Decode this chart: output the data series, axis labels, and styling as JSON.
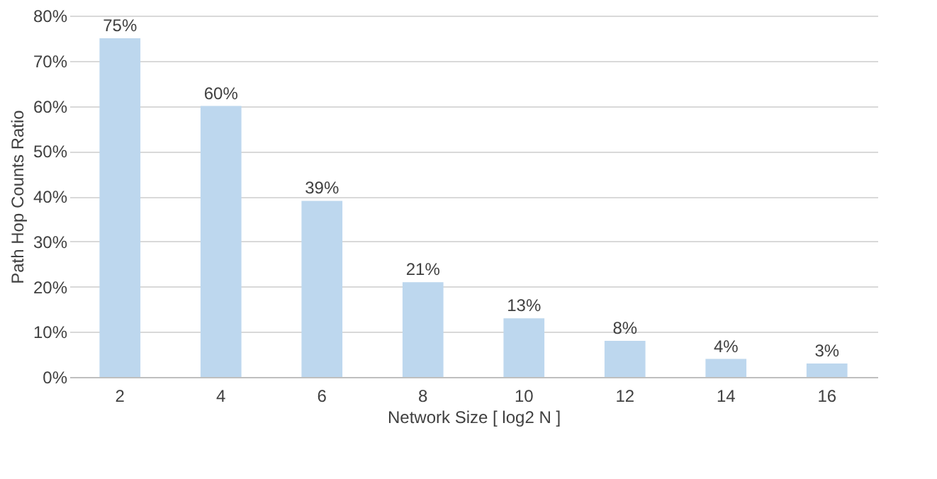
{
  "chart_data": {
    "type": "bar",
    "xlabel": "Network Size [ log2 N ]",
    "ylabel": "Path Hop Counts Ratio",
    "categories": [
      "2",
      "4",
      "6",
      "8",
      "10",
      "12",
      "14",
      "16"
    ],
    "values": [
      75,
      60,
      39,
      21,
      13,
      8,
      4,
      3
    ],
    "value_labels": [
      "75%",
      "60%",
      "39%",
      "21%",
      "13%",
      "8%",
      "4%",
      "3%"
    ],
    "color": "#bdd7ee",
    "ylim": [
      0,
      80
    ],
    "yticks": [
      {
        "value": 0,
        "label": "0%"
      },
      {
        "value": 10,
        "label": "10%"
      },
      {
        "value": 20,
        "label": "20%"
      },
      {
        "value": 30,
        "label": "30%"
      },
      {
        "value": 40,
        "label": "40%"
      },
      {
        "value": 50,
        "label": "50%"
      },
      {
        "value": 60,
        "label": "60%"
      },
      {
        "value": 70,
        "label": "70%"
      },
      {
        "value": 80,
        "label": "80%"
      }
    ],
    "grid": "y"
  }
}
